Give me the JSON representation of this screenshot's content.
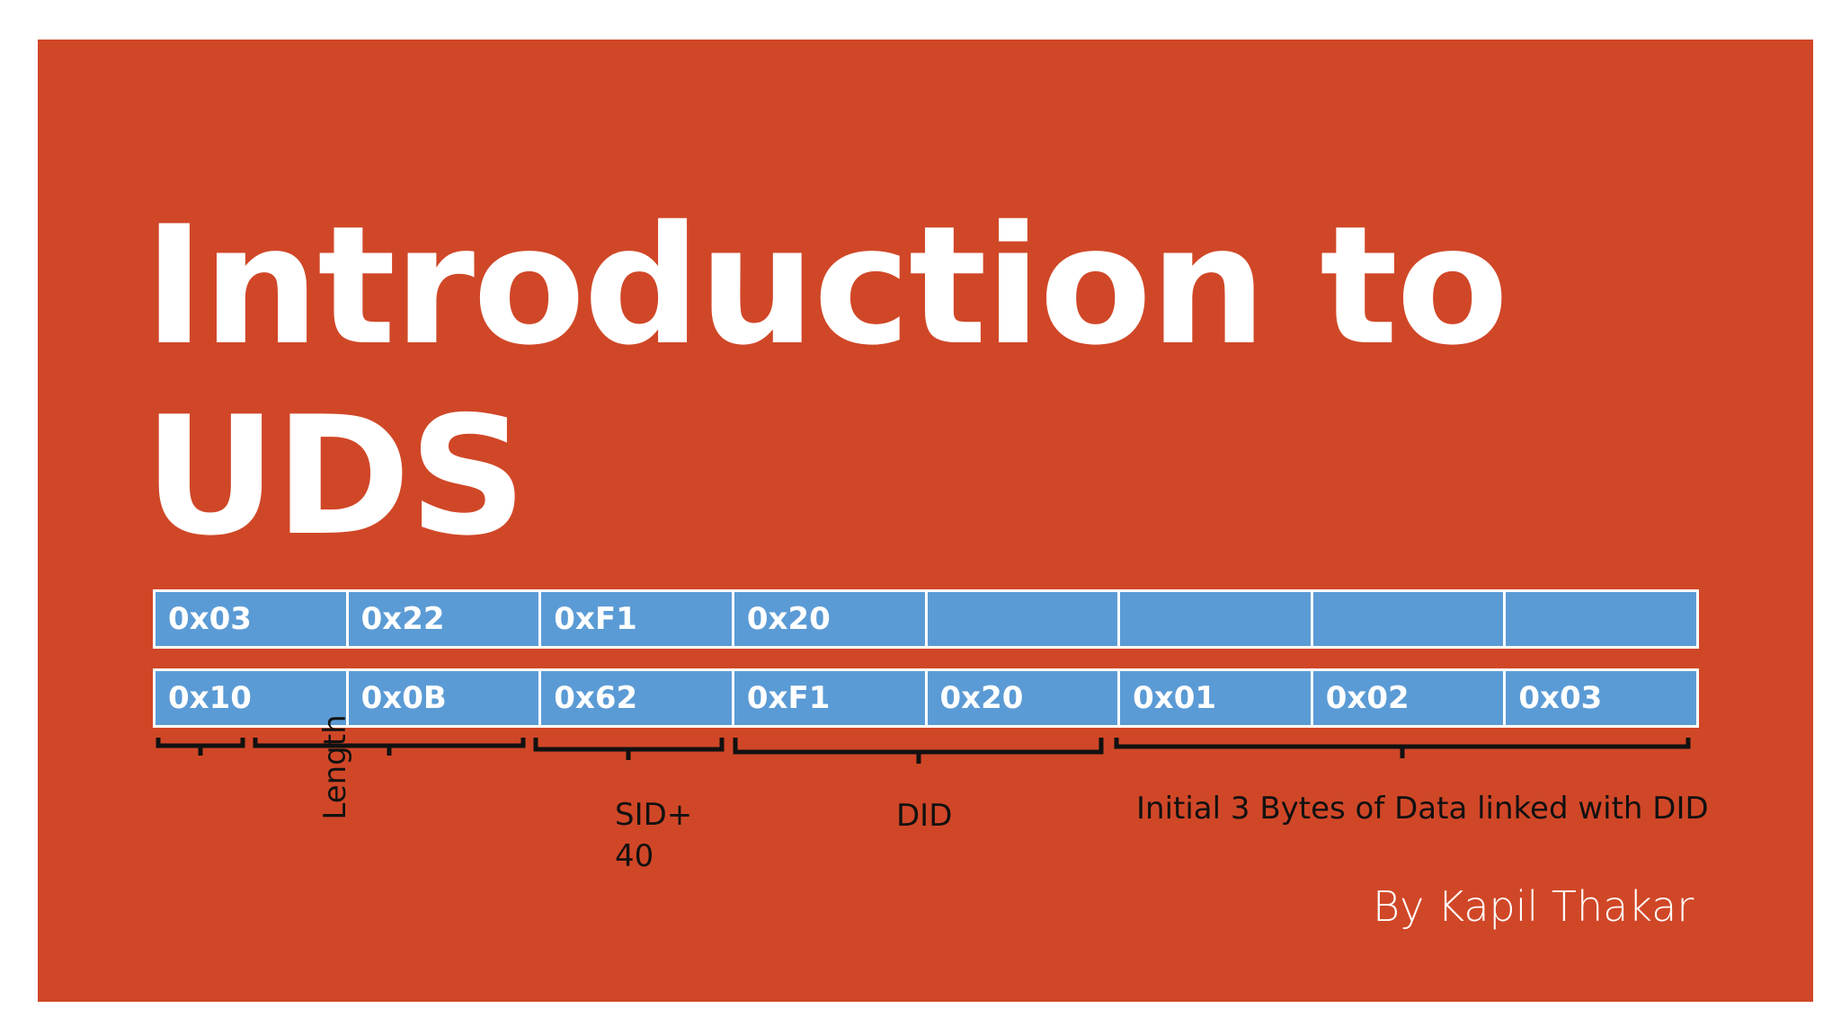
{
  "slide": {
    "title_line1": "Introduction to",
    "title_line2": "UDS",
    "author": "By Kapil Thakar"
  },
  "colors": {
    "slide_background": "#d04727",
    "byte_cell_fill": "#5b9bd5",
    "byte_text": "#ffffff",
    "bracket_color": "#111111"
  },
  "request_bytes": [
    "0x03",
    "0x22",
    "0xF1",
    "0x20",
    "",
    "",
    "",
    ""
  ],
  "response_bytes": [
    "0x10",
    "0x0B",
    "0x62",
    "0xF1",
    "0x20",
    "0x01",
    "0x02",
    "0x03"
  ],
  "annotations": {
    "length": "Length",
    "sid": "SID+ 40",
    "did": "DID",
    "data": "Initial 3 Bytes of Data linked with DID"
  }
}
